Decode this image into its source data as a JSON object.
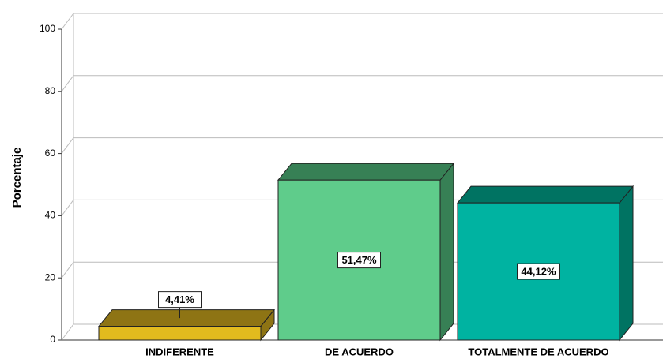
{
  "chart_data": {
    "type": "bar3d",
    "y_axis_label": "Porcentaje",
    "categories": [
      "INDIFERENTE",
      "DE ACUERDO",
      "TOTALMENTE DE ACUERDO"
    ],
    "values": [
      4.41,
      51.47,
      44.12
    ],
    "value_labels": [
      "4,41%",
      "51,47%",
      "44,12%"
    ],
    "colors": [
      "#e2bb1e",
      "#5fcc8b",
      "#00b3a1"
    ],
    "top_colors": [
      "#8e7414",
      "#378055",
      "#007362"
    ],
    "ylim": [
      0,
      100
    ],
    "yticks": [
      0,
      20,
      40,
      60,
      80,
      100
    ],
    "grid": true
  }
}
